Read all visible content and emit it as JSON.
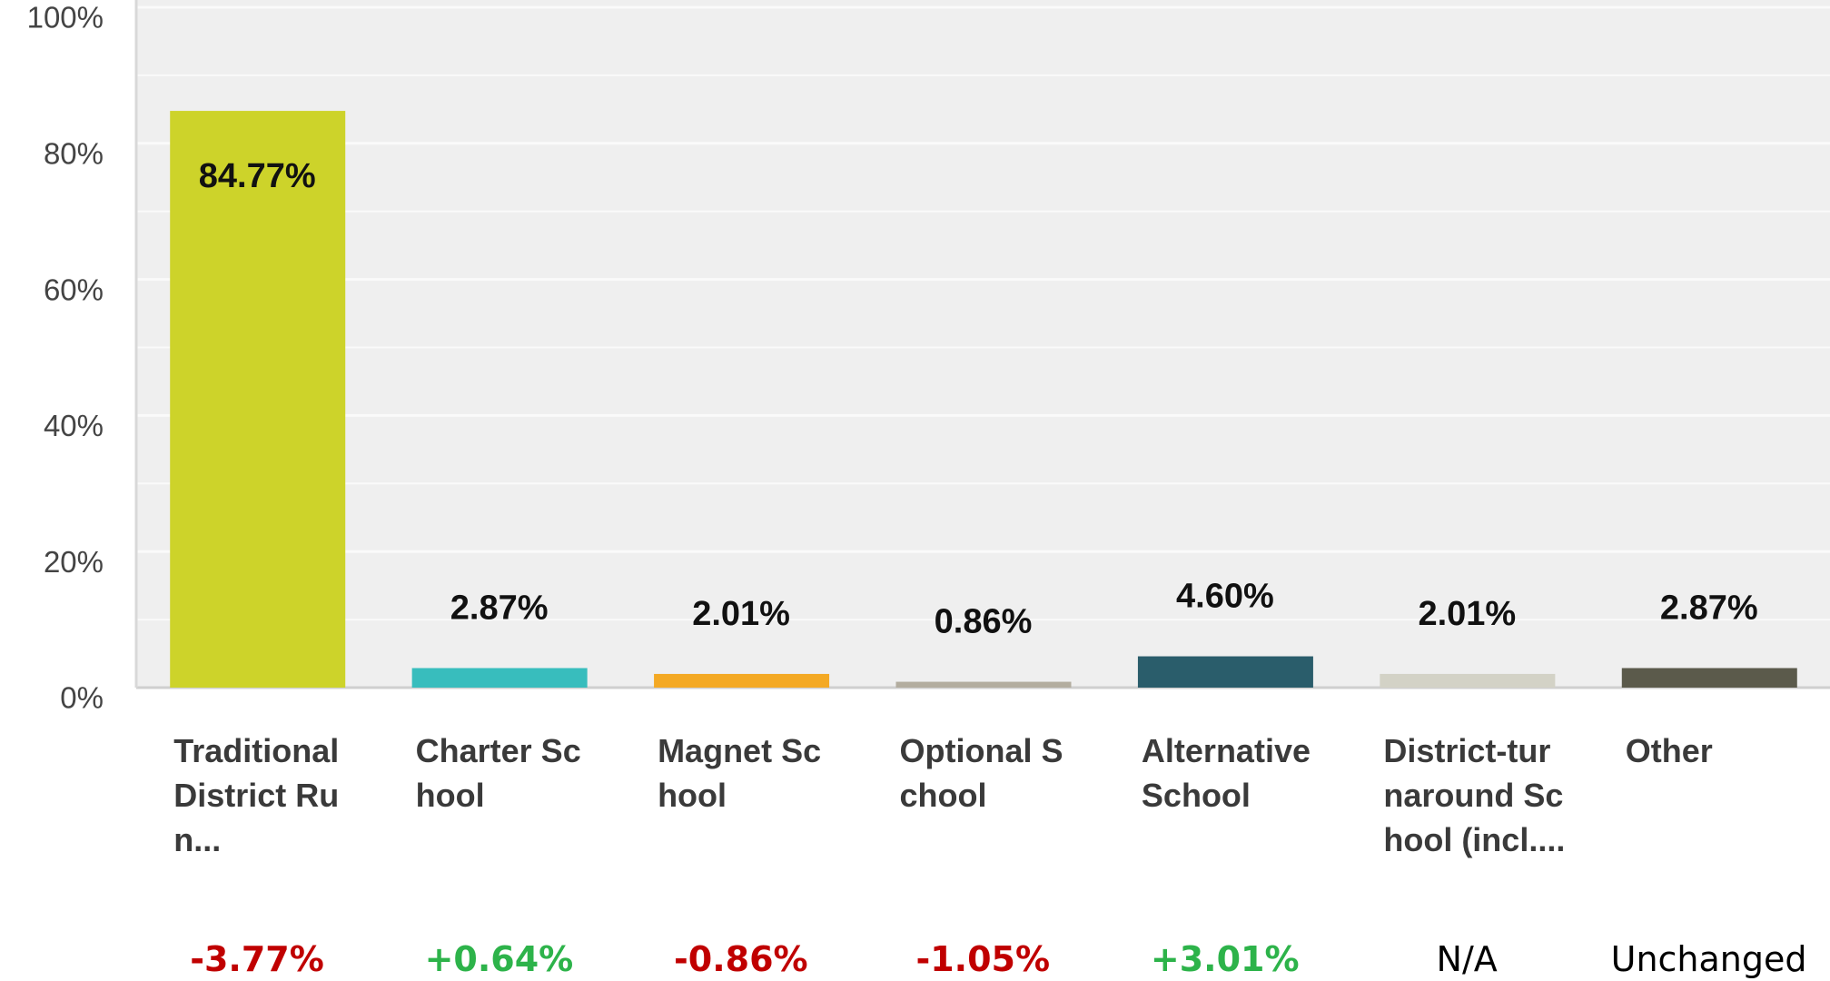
{
  "chart_data": {
    "type": "bar",
    "categories": [
      "Traditional District Run...",
      "Charter School",
      "Magnet School",
      "Optional School",
      "Alternative School",
      "District-turnaround School (incl....",
      "Other"
    ],
    "values": [
      84.77,
      2.87,
      2.01,
      0.86,
      4.6,
      2.01,
      2.87
    ],
    "value_labels": [
      "84.77%",
      "2.87%",
      "2.01%",
      "0.86%",
      "4.60%",
      "2.01%",
      "2.87%"
    ],
    "colors": [
      "#cdd32a",
      "#38bdbd",
      "#f4a924",
      "#b3ad9f",
      "#2a5d6b",
      "#d3d2c6",
      "#5b5a4b"
    ],
    "ylim": [
      0,
      100
    ],
    "yticks": [
      {
        "value": 0,
        "label": "0%"
      },
      {
        "value": 20,
        "label": "20%"
      },
      {
        "value": 40,
        "label": "40%"
      },
      {
        "value": 60,
        "label": "60%"
      },
      {
        "value": 80,
        "label": "80%"
      },
      {
        "value": 100,
        "label": "100%"
      }
    ],
    "minor_yticks": [
      10,
      30,
      50,
      70,
      90
    ],
    "grid": true,
    "changes": [
      {
        "text": "-3.77%",
        "color": "#c00000"
      },
      {
        "text": "+0.64%",
        "color": "#2db34a"
      },
      {
        "text": "-0.86%",
        "color": "#c00000"
      },
      {
        "text": "-1.05%",
        "color": "#c00000"
      },
      {
        "text": "+3.01%",
        "color": "#2db34a"
      },
      {
        "text": "N/A",
        "color": "#000000"
      },
      {
        "text": "Unchanged",
        "color": "#000000"
      }
    ]
  }
}
